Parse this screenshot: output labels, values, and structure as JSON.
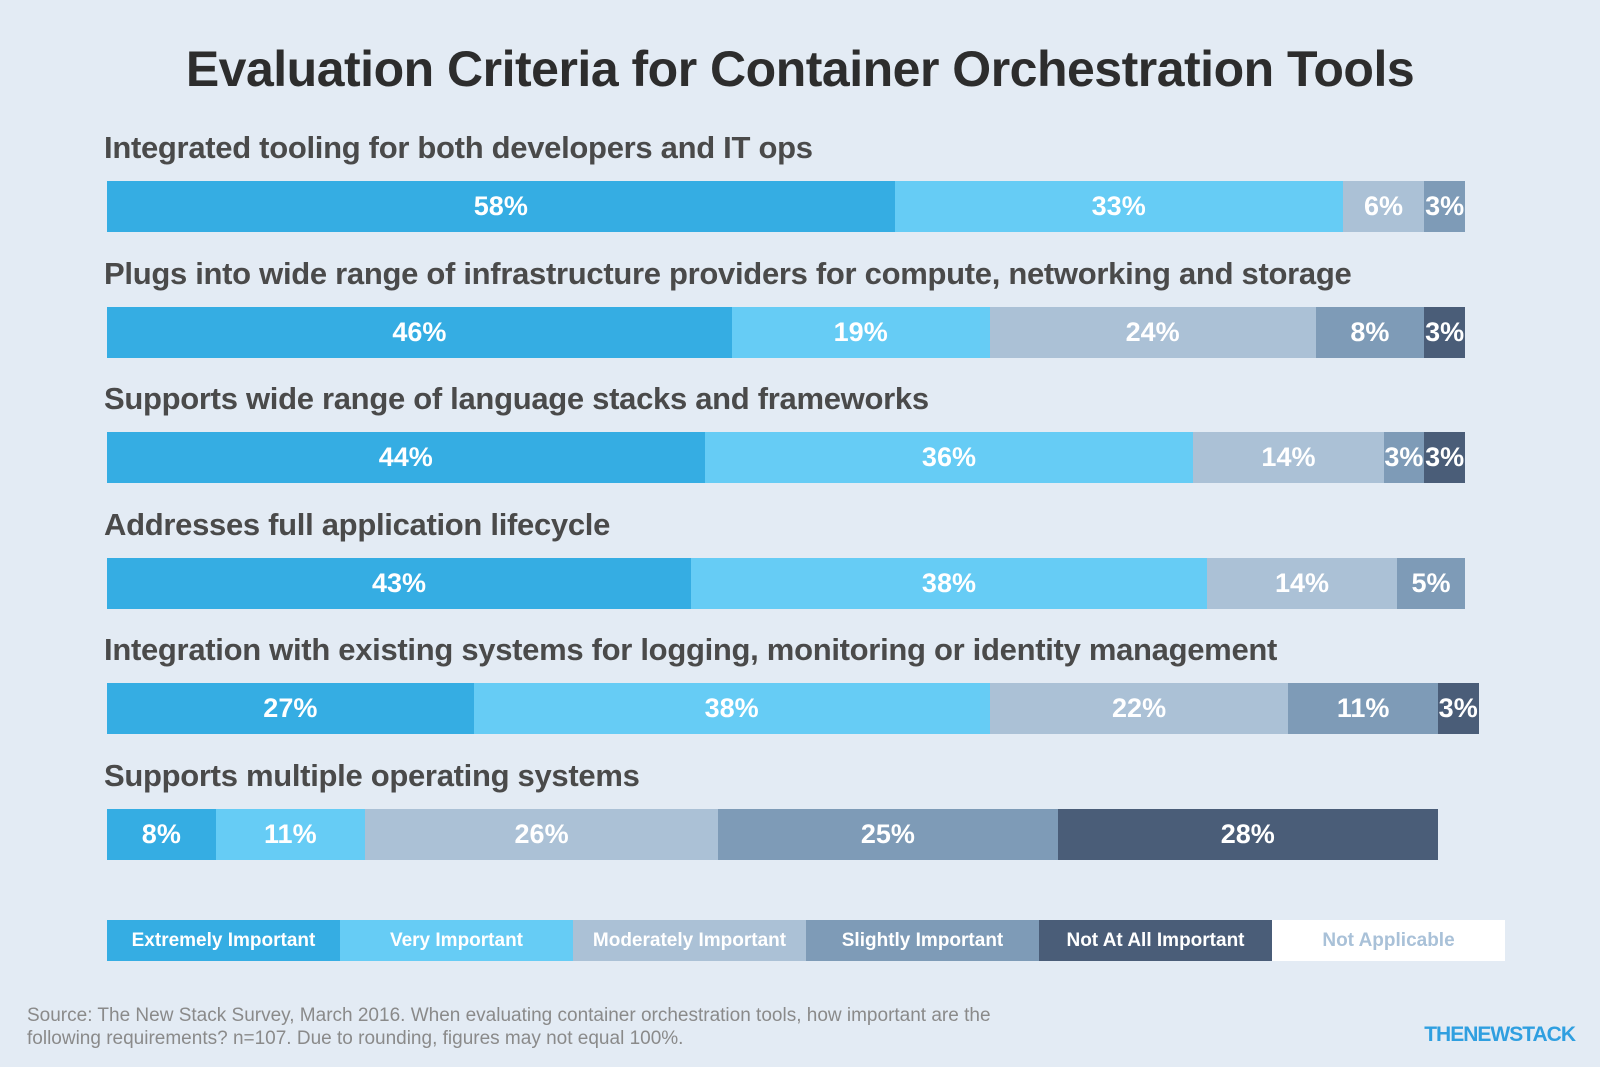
{
  "chart_data": {
    "type": "bar",
    "orientation": "horizontal",
    "stacked": true,
    "title": "Evaluation Criteria for Container Orchestration Tools",
    "categories": [
      "Integrated tooling for both developers and IT ops",
      "Plugs into wide range of infrastructure providers for compute, networking and storage",
      "Supports wide range of language stacks and frameworks",
      "Addresses full application lifecycle",
      "Integration with existing systems for logging, monitoring or identity management",
      "Supports multiple operating systems"
    ],
    "series": [
      {
        "name": "Extremely Important",
        "color": "#35ade3",
        "values": [
          58,
          46,
          44,
          43,
          27,
          8
        ]
      },
      {
        "name": "Very Important",
        "color": "#66ccf5",
        "values": [
          33,
          19,
          36,
          38,
          38,
          11
        ]
      },
      {
        "name": "Moderately Important",
        "color": "#abc1d6",
        "values": [
          6,
          24,
          14,
          14,
          22,
          26
        ]
      },
      {
        "name": "Slightly Important",
        "color": "#7e9bb7",
        "values": [
          3,
          8,
          3,
          5,
          11,
          25
        ]
      },
      {
        "name": "Not At All Important",
        "color": "#4a5d78",
        "values": [
          0,
          3,
          3,
          0,
          3,
          28
        ]
      },
      {
        "name": "Not Applicable",
        "color": "#ffffff",
        "values": [
          0,
          0,
          0,
          0,
          0,
          0
        ]
      }
    ],
    "value_format": "{v}%",
    "legend_position": "bottom",
    "legend_text_colors": [
      "#ffffff",
      "#ffffff",
      "#ffffff",
      "#ffffff",
      "#ffffff",
      "#a9c1d8"
    ],
    "xlim": [
      0,
      100
    ]
  },
  "source_note": "Source: The New Stack Survey, March 2016. When evaluating container orchestration tools, how important are the following requirements? n=107. Due to rounding, figures may not equal 100%.",
  "brand": "THENEWSTACK"
}
